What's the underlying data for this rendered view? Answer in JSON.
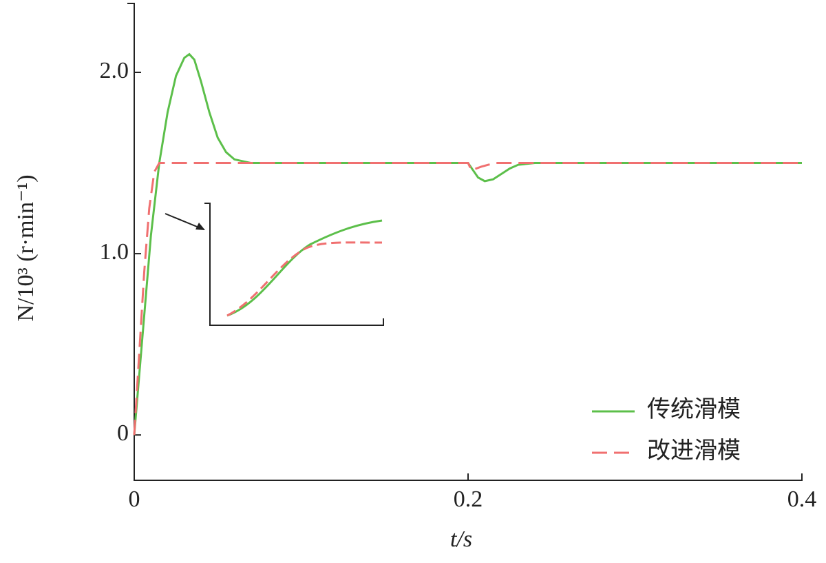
{
  "chart_data": {
    "type": "line",
    "x_label": "t/s",
    "y_label": "N/10³ (r·min⁻¹)",
    "xlim": [
      0,
      0.4
    ],
    "ylim": [
      -0.25,
      2.38
    ],
    "xticks": [
      0,
      0.2,
      0.4
    ],
    "yticks": [
      0,
      {
        "value": 1,
        "label": "1.0"
      },
      {
        "value": 2,
        "label": "2.0"
      }
    ],
    "legend": "lower right",
    "series": [
      {
        "name": "传统滑模",
        "color": "#5cbf4a",
        "dash": false,
        "x": [
          0,
          0.005,
          0.01,
          0.015,
          0.02,
          0.025,
          0.03,
          0.033,
          0.036,
          0.04,
          0.045,
          0.05,
          0.055,
          0.06,
          0.07,
          0.08,
          0.1,
          0.15,
          0.2,
          0.203,
          0.206,
          0.21,
          0.215,
          0.22,
          0.225,
          0.23,
          0.24,
          0.25,
          0.3,
          0.35,
          0.4
        ],
        "values": [
          0,
          0.55,
          1.1,
          1.5,
          1.78,
          1.98,
          2.08,
          2.1,
          2.07,
          1.95,
          1.78,
          1.64,
          1.56,
          1.52,
          1.5,
          1.5,
          1.5,
          1.5,
          1.5,
          1.46,
          1.42,
          1.4,
          1.41,
          1.44,
          1.47,
          1.49,
          1.5,
          1.5,
          1.5,
          1.5,
          1.5
        ]
      },
      {
        "name": "改进滑模",
        "color": "#f07070",
        "dash": true,
        "x": [
          0,
          0.003,
          0.006,
          0.009,
          0.012,
          0.015,
          0.02,
          0.05,
          0.1,
          0.2,
          0.202,
          0.205,
          0.208,
          0.212,
          0.216,
          0.22,
          0.25,
          0.3,
          0.4
        ],
        "values": [
          0,
          0.45,
          0.9,
          1.25,
          1.45,
          1.5,
          1.5,
          1.5,
          1.5,
          1.5,
          1.46,
          1.47,
          1.48,
          1.49,
          1.5,
          1.5,
          1.5,
          1.5,
          1.5
        ]
      }
    ]
  }
}
